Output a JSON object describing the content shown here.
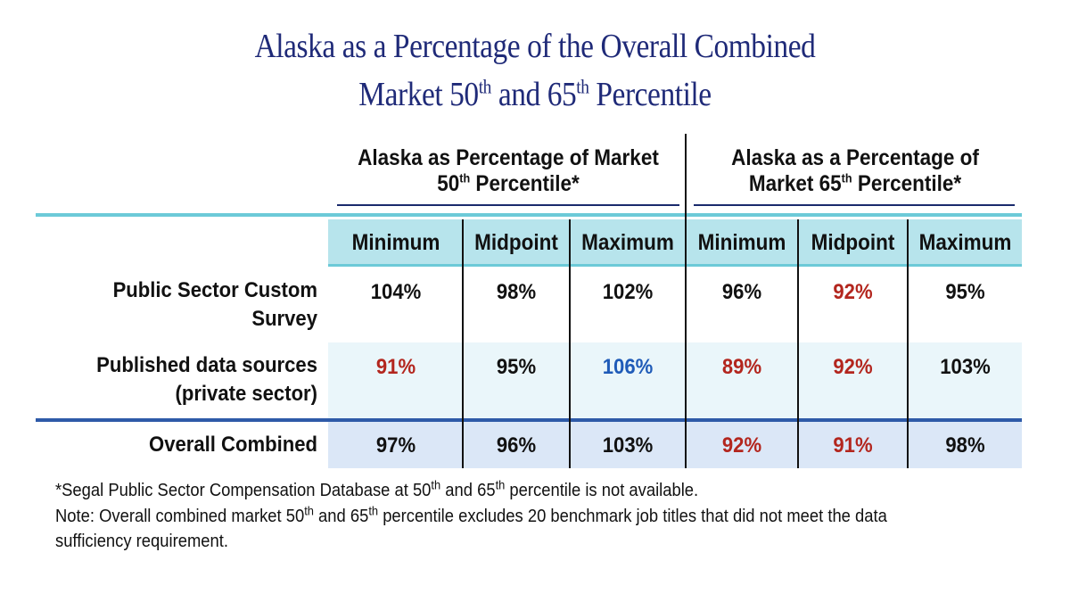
{
  "title": {
    "line1": "Alaska as a Percentage of the Overall Combined",
    "line2_pre": "Market 50",
    "line2_sup1": "th",
    "line2_mid": " and 65",
    "line2_sup2": "th",
    "line2_post": " Percentile"
  },
  "groups": [
    {
      "line1": "Alaska as Percentage of Market",
      "line2_pre": "50",
      "line2_sup": "th",
      "line2_post": " Percentile*"
    },
    {
      "line1": "Alaska as a Percentage of",
      "line2_pre": "Market 65",
      "line2_sup": "th",
      "line2_post": " Percentile*"
    }
  ],
  "columns": [
    "Minimum",
    "Midpoint",
    "Maximum",
    "Minimum",
    "Midpoint",
    "Maximum"
  ],
  "rows": [
    {
      "label_line1": "Public Sector Custom",
      "label_line2": "Survey",
      "cells": [
        {
          "value": "104%",
          "color": "#111111"
        },
        {
          "value": "98%",
          "color": "#111111"
        },
        {
          "value": "102%",
          "color": "#111111"
        },
        {
          "value": "96%",
          "color": "#111111"
        },
        {
          "value": "92%",
          "color": "#b3261e"
        },
        {
          "value": "95%",
          "color": "#111111"
        }
      ]
    },
    {
      "label_line1": "Published data sources",
      "label_line2": "(private sector)",
      "cells": [
        {
          "value": "91%",
          "color": "#b3261e"
        },
        {
          "value": "95%",
          "color": "#111111"
        },
        {
          "value": "106%",
          "color": "#1f5bb8"
        },
        {
          "value": "89%",
          "color": "#b3261e"
        },
        {
          "value": "92%",
          "color": "#b3261e"
        },
        {
          "value": "103%",
          "color": "#111111"
        }
      ]
    },
    {
      "label_line1": "Overall Combined",
      "label_line2": "",
      "cells": [
        {
          "value": "97%",
          "color": "#111111"
        },
        {
          "value": "96%",
          "color": "#111111"
        },
        {
          "value": "103%",
          "color": "#111111"
        },
        {
          "value": "92%",
          "color": "#b3261e"
        },
        {
          "value": "91%",
          "color": "#b3261e"
        },
        {
          "value": "98%",
          "color": "#111111"
        }
      ]
    }
  ],
  "footnotes": {
    "line1_pre": "*Segal Public Sector Compensation Database at 50",
    "line1_sup1": "th",
    "line1_mid": " and 65",
    "line1_sup2": "th",
    "line1_post": " percentile is not available.",
    "line2_pre": "Note: Overall combined market 50",
    "line2_sup1": "th",
    "line2_mid": " and 65",
    "line2_sup2": "th",
    "line2_post": " percentile excludes 20 benchmark job titles that did not meet the data",
    "line3": "sufficiency requirement."
  },
  "colors": {
    "title": "#1f2a78",
    "header_band": "#b7e4ec",
    "teal_rule": "#6ccad8",
    "navy_rule": "#2e5aa8",
    "red": "#b3261e",
    "blue": "#1f5bb8"
  }
}
